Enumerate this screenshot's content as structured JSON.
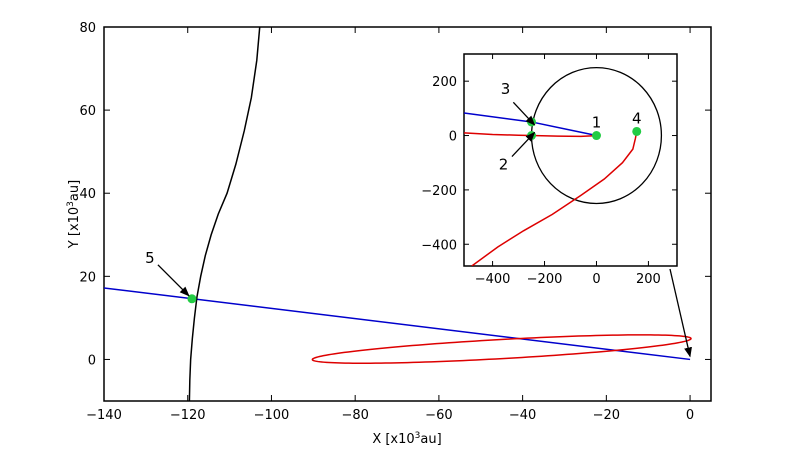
{
  "chart_data": {
    "type": "line",
    "xlabel": {
      "pre": "X [x10",
      "sup": "3",
      "post": "au]"
    },
    "ylabel": {
      "pre": "Y [x10",
      "sup": "3",
      "post": "au]"
    },
    "xlim": [
      -140,
      5
    ],
    "ylim": [
      -10,
      80
    ],
    "xticks": [
      -140,
      -120,
      -100,
      -80,
      -60,
      -40,
      -20,
      0
    ],
    "yticks": [
      0,
      20,
      40,
      60,
      80
    ],
    "grid": false,
    "series": [
      {
        "color": "#0000cc",
        "x": [
          -140,
          0
        ],
        "y": [
          17.2,
          0
        ]
      },
      {
        "color": "#000000",
        "x": [
          -119.6,
          -119.5,
          -119.3,
          -118.9,
          -118.4,
          -117.8,
          -116.9,
          -115.8,
          -114.4,
          -112.7,
          -110.6,
          -108.5,
          -106.5,
          -104.8,
          -103.5,
          -102.8
        ],
        "y": [
          -10,
          -5,
          0,
          5,
          10,
          15,
          20,
          25,
          30,
          35,
          40,
          47,
          55,
          63,
          72,
          80
        ]
      }
    ],
    "ellipse": {
      "color": "#dd0000",
      "cx": -45,
      "cy": 2.5,
      "a": 45.3,
      "b": 2.3,
      "angle_deg": 3.2
    },
    "points": [
      {
        "label": "5",
        "x": -119,
        "y": 14.6,
        "color": "#22cc44"
      }
    ],
    "inset": {
      "xlim": [
        -510,
        310
      ],
      "ylim": [
        -480,
        300
      ],
      "xticks": [
        -400,
        -200,
        0,
        200
      ],
      "yticks": [
        200,
        0,
        -200,
        -400
      ],
      "circle": {
        "cx": 0,
        "cy": 0,
        "r": 250,
        "color": "#000000"
      },
      "series": [
        {
          "color": "#0000cc",
          "x": [
            -510,
            -250,
            0
          ],
          "y": [
            83,
            50,
            0
          ]
        },
        {
          "color": "#dd0000",
          "x": [
            -510,
            -400,
            -300,
            -250,
            -150,
            -60,
            -10
          ],
          "y": [
            10,
            4,
            1,
            0,
            -2,
            -3,
            -1
          ]
        },
        {
          "color": "#dd0000",
          "x": [
            -480,
            -380,
            -280,
            -170,
            -60,
            30,
            100,
            140,
            150,
            155
          ],
          "y": [
            -480,
            -410,
            -350,
            -290,
            -220,
            -160,
            -100,
            -50,
            -10,
            15
          ]
        }
      ],
      "points": [
        {
          "label": "1",
          "x": 0,
          "y": 0,
          "color": "#22cc44"
        },
        {
          "label": "2",
          "x": -250,
          "y": 0,
          "color": "#22cc44"
        },
        {
          "label": "3",
          "x": -250,
          "y": 50,
          "color": "#22cc44"
        },
        {
          "label": "4",
          "x": 155,
          "y": 15,
          "color": "#22cc44"
        }
      ]
    }
  }
}
